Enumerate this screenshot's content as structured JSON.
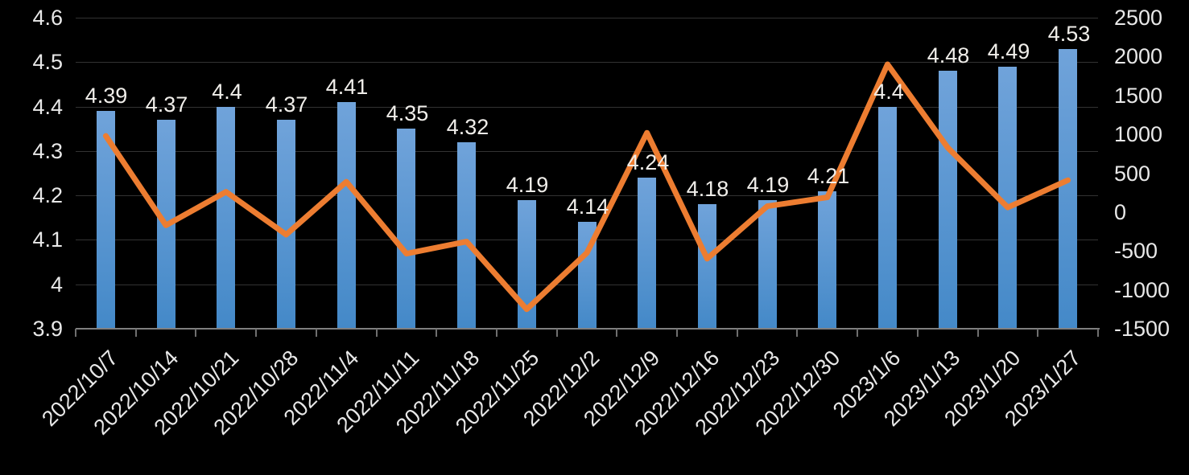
{
  "chart_data": {
    "type": "combo (bar + line, dual axis)",
    "title": "",
    "legend_position": "none",
    "background": "#000000",
    "grid": "horizontal",
    "categories": [
      "2022/10/7",
      "2022/10/14",
      "2022/10/21",
      "2022/10/28",
      "2022/11/4",
      "2022/11/11",
      "2022/11/18",
      "2022/11/25",
      "2022/12/2",
      "2022/12/9",
      "2022/12/16",
      "2022/12/23",
      "2022/12/30",
      "2023/1/6",
      "2023/1/13",
      "2023/1/20",
      "2023/1/27"
    ],
    "series": [
      {
        "name": "bars-left-axis",
        "type": "bar",
        "axis": "left",
        "values": [
          4.39,
          4.37,
          4.4,
          4.37,
          4.41,
          4.35,
          4.32,
          4.19,
          4.14,
          4.24,
          4.18,
          4.19,
          4.21,
          4.4,
          4.48,
          4.49,
          4.53
        ],
        "data_labels": [
          "4.39",
          "4.37",
          "4.4",
          "4.37",
          "4.41",
          "4.35",
          "4.32",
          "4.19",
          "4.14",
          "4.24",
          "4.18",
          "4.19",
          "4.21",
          "4.4",
          "4.48",
          "4.49",
          "4.53"
        ]
      },
      {
        "name": "line-right-axis",
        "type": "line",
        "axis": "right",
        "values": [
          980,
          -170,
          260,
          -290,
          390,
          -535,
          -380,
          -1250,
          -525,
          1020,
          -600,
          75,
          190,
          1900,
          830,
          60,
          410
        ]
      }
    ],
    "left_axis": {
      "min": 3.9,
      "max": 4.6,
      "step": 0.1,
      "tick_labels": [
        "4.6",
        "4.5",
        "4.4",
        "4.3",
        "4.2",
        "4.1",
        "4",
        "3.9"
      ]
    },
    "right_axis": {
      "min": -1500,
      "max": 2500,
      "step": 500,
      "tick_labels": [
        "2500",
        "2000",
        "1500",
        "1000",
        "500",
        "0",
        "-500",
        "-1000",
        "-1500"
      ]
    }
  },
  "colors": {
    "background": "#000000",
    "bar_gradient_top": "#70A3DA",
    "bar_gradient_bottom": "#4489C8",
    "line": "#ED7D31",
    "axis_text": "#e8e8e8",
    "data_label_text": "#f0eeea",
    "gridline": "#333333",
    "axis_line": "#7f7f7f"
  }
}
